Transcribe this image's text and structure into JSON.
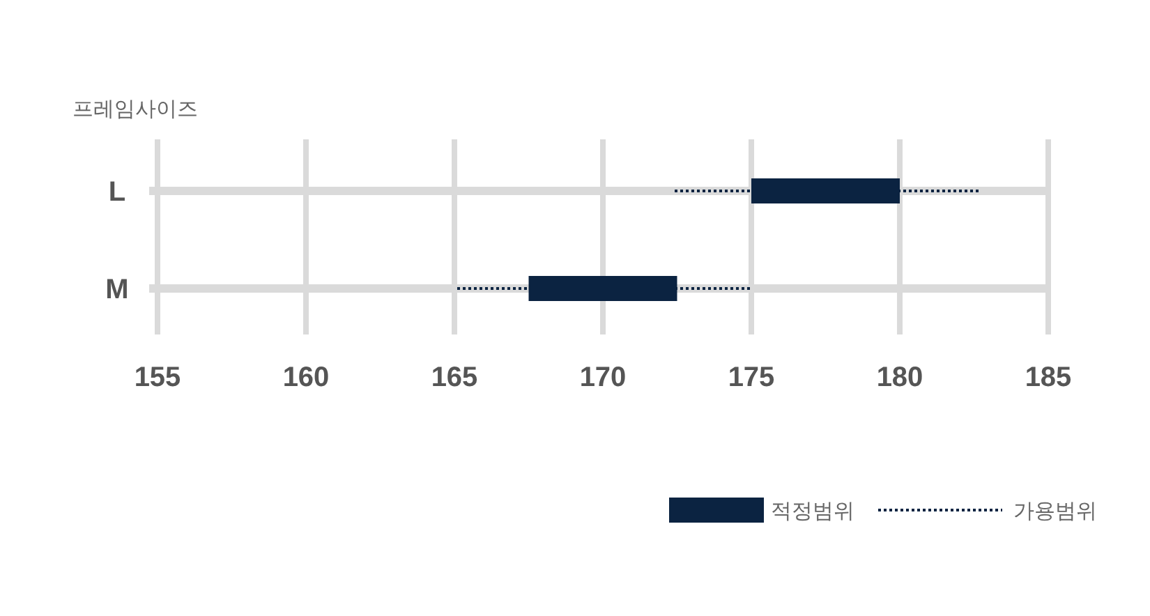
{
  "chart_data": {
    "type": "bar",
    "orientation": "horizontal",
    "title": "프레임사이즈",
    "categories": [
      "L",
      "M"
    ],
    "series": [
      {
        "name": "적정범위",
        "color": "#0b2341",
        "base": [
          175,
          167.5
        ],
        "values": [
          5,
          5
        ]
      },
      {
        "name": "가용범위",
        "color": "#0b2341",
        "line_style": "dotted",
        "base": [
          172.4,
          165
        ],
        "values": [
          10.3,
          10
        ]
      }
    ],
    "xlim": [
      155,
      185
    ],
    "xticks": [
      155,
      160,
      165,
      170,
      175,
      180,
      185
    ],
    "grid": "x",
    "legend": "bottom right"
  }
}
